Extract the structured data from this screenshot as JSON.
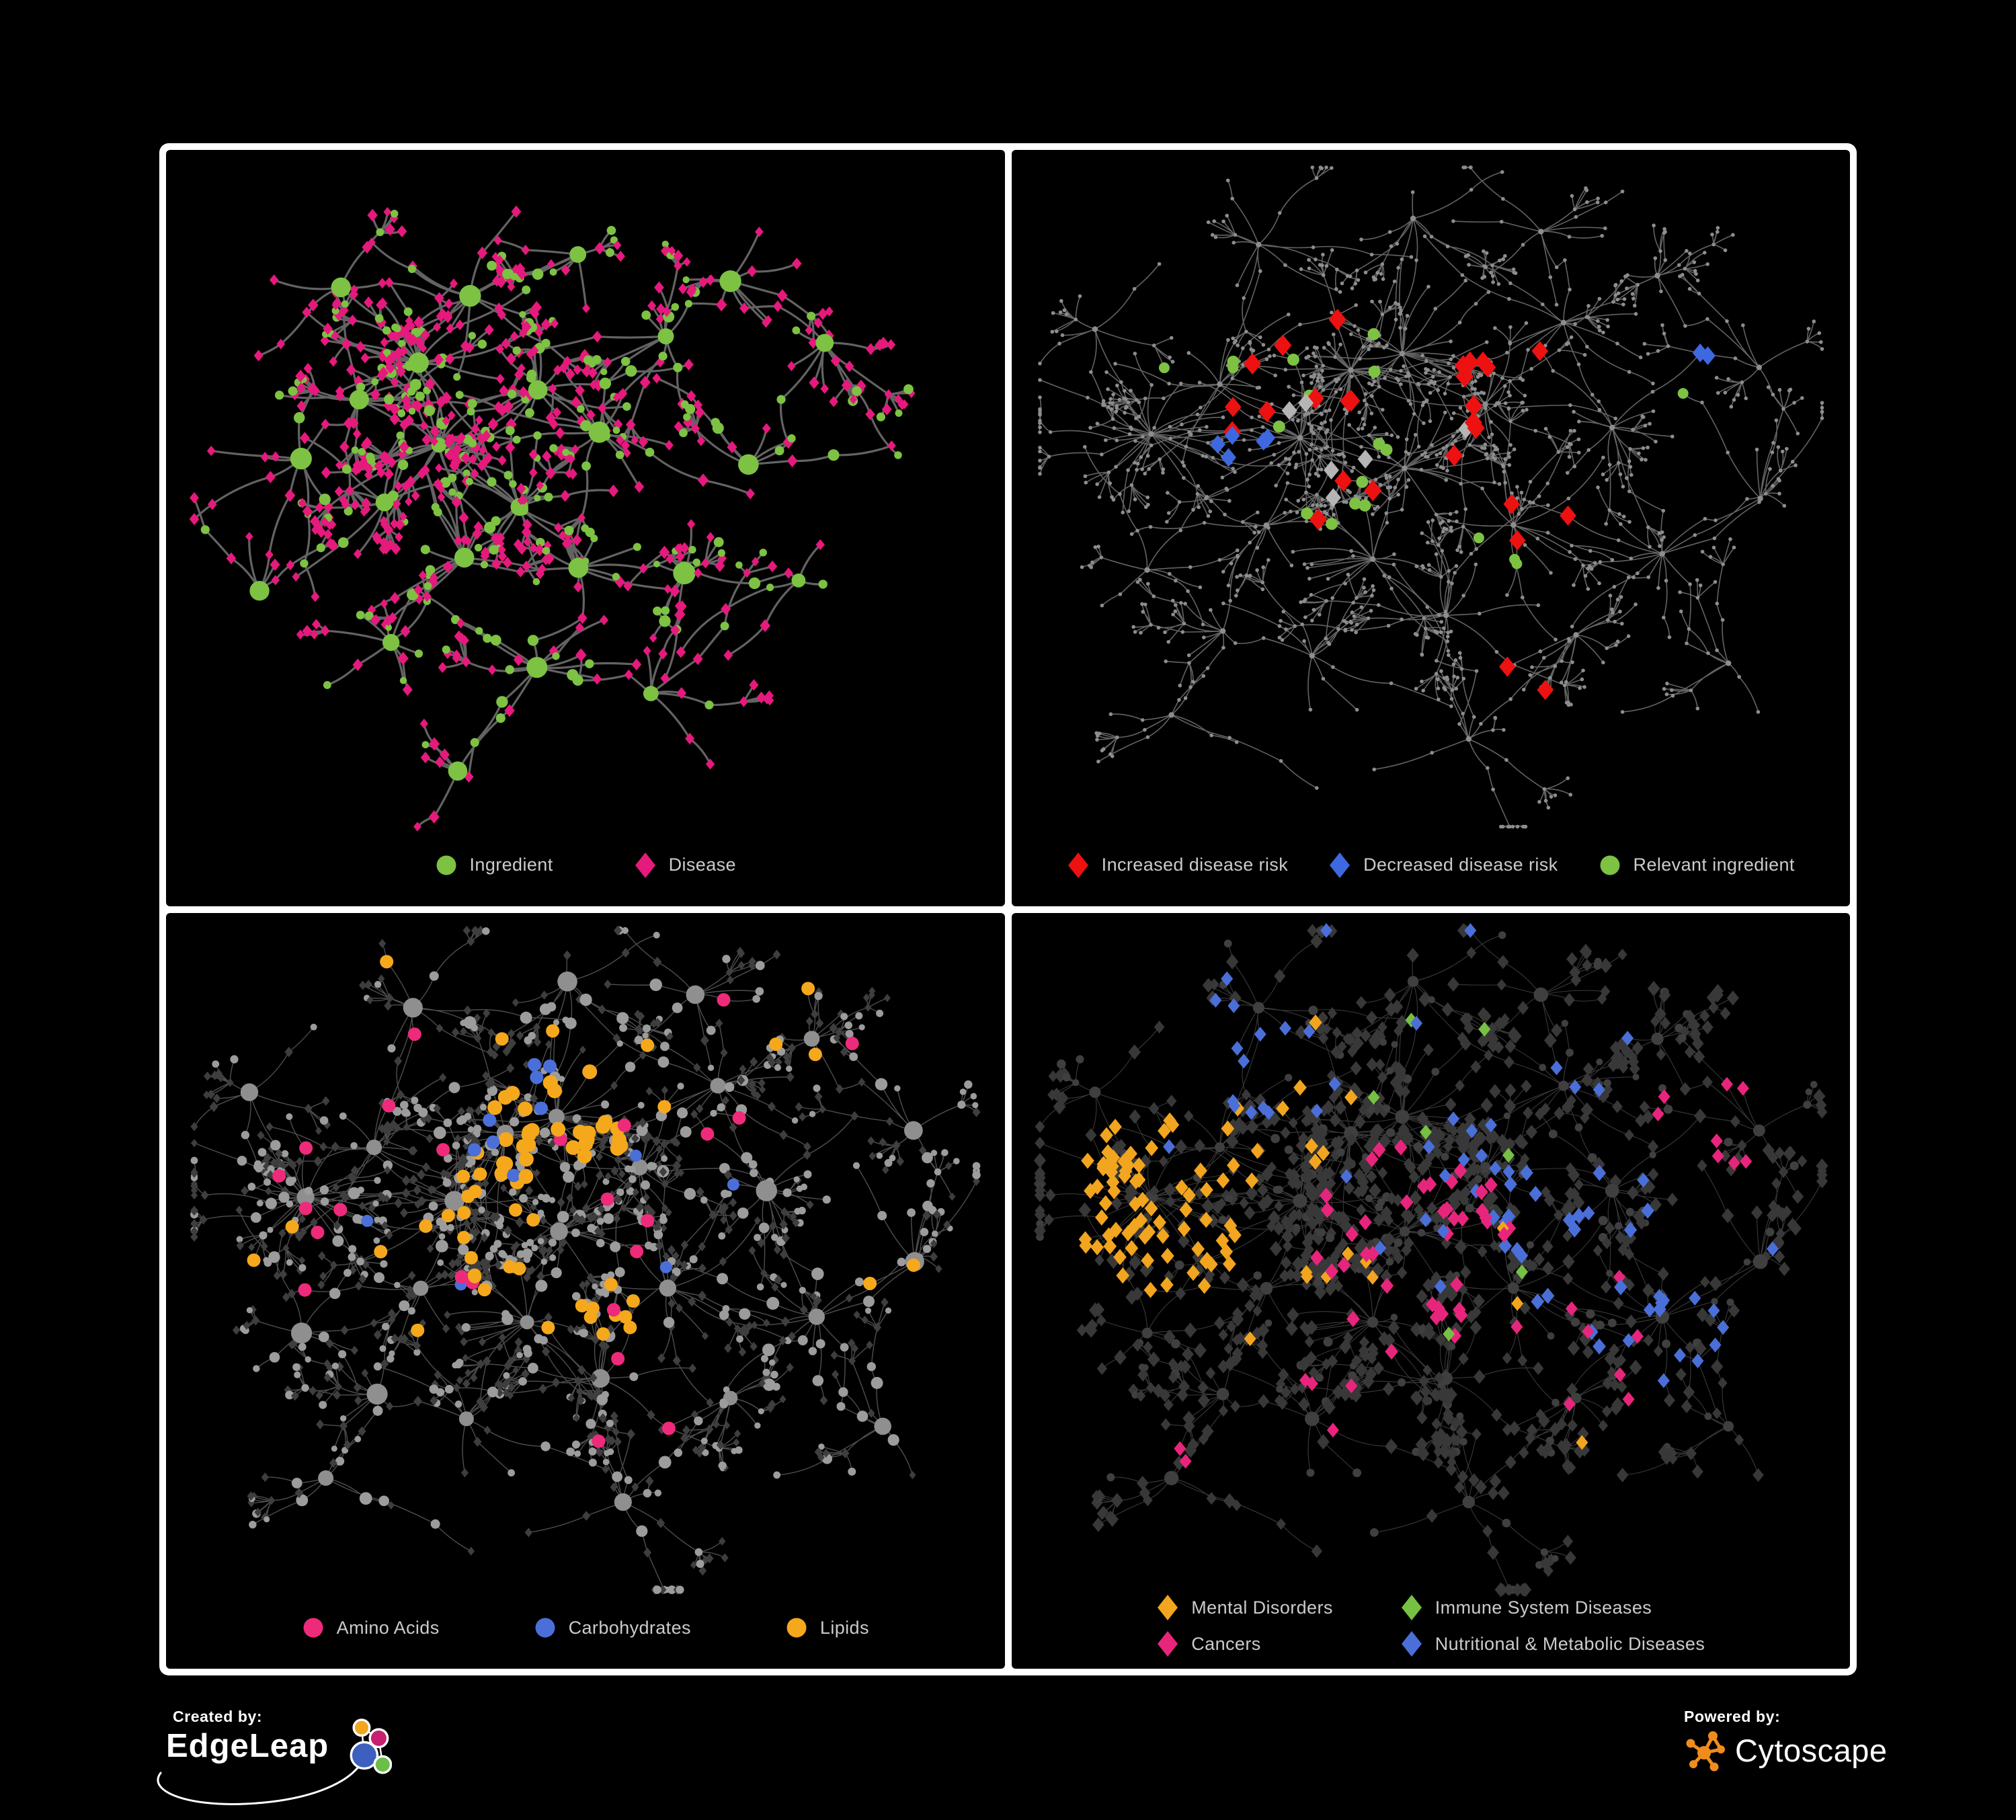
{
  "page": {
    "background": "#000000",
    "frame_color": "#ffffff"
  },
  "panels": [
    {
      "id": "ingredient-disease",
      "legend": [
        {
          "label": "Ingredient",
          "shape": "circle",
          "color": "#7DC242"
        },
        {
          "label": "Disease",
          "shape": "diamond",
          "color": "#E6197D"
        }
      ]
    },
    {
      "id": "disease-risk",
      "legend": [
        {
          "label": "Increased disease risk",
          "shape": "diamond",
          "color": "#EE1111"
        },
        {
          "label": "Decreased disease risk",
          "shape": "diamond",
          "color": "#3E68E0"
        },
        {
          "label": "Relevant ingredient",
          "shape": "circle",
          "color": "#7DC242"
        }
      ]
    },
    {
      "id": "nutrient-classes",
      "legend": [
        {
          "label": "Amino Acids",
          "shape": "circle",
          "color": "#EE2A7B"
        },
        {
          "label": "Carbohydrates",
          "shape": "circle",
          "color": "#4A6FD8"
        },
        {
          "label": "Lipids",
          "shape": "circle",
          "color": "#F5A81C"
        }
      ]
    },
    {
      "id": "disease-classes",
      "legend": [
        {
          "label": "Mental Disorders",
          "shape": "diamond",
          "color": "#F2A51F"
        },
        {
          "label": "Immune System Diseases",
          "shape": "diamond",
          "color": "#76C043"
        },
        {
          "label": "Cancers",
          "shape": "diamond",
          "color": "#E8257C"
        },
        {
          "label": "Nutritional & Metabolic Diseases",
          "shape": "diamond",
          "color": "#4A6FD8"
        }
      ]
    }
  ],
  "footer": {
    "created_by": "Created by:",
    "created_logo": "EdgeLeap",
    "powered_by": "Powered by:",
    "powered_logo": "Cytoscape",
    "edgeleap_colors": {
      "orange": "#F2A51F",
      "pink": "#C81F6E",
      "blue": "#3D5FC0",
      "green": "#6DBE45"
    },
    "cytoscape_color": "#F08C1E"
  },
  "chart_data": [
    {
      "type": "network",
      "panel": "ingredient-disease",
      "seed": 345,
      "styleSeed": 71,
      "curveSeed": 2024,
      "burstScale": 0.8,
      "chainP": 0.45,
      "fanP": 0.33,
      "base": "p1",
      "edge": {
        "color": "#696969",
        "width": 3.2,
        "opacity": 0.95
      },
      "node_colors": {
        "ingredient": "#7DC242",
        "disease": "#E6197D"
      },
      "clusters": [
        {
          "x": 0.3,
          "y": 0.3,
          "b": 26
        },
        {
          "x": 0.22,
          "y": 0.36,
          "b": 16
        },
        {
          "x": 0.36,
          "y": 0.22,
          "b": 14
        },
        {
          "x": 0.33,
          "y": 0.42,
          "b": 22
        },
        {
          "x": 0.44,
          "y": 0.34,
          "b": 18
        },
        {
          "x": 0.25,
          "y": 0.52,
          "b": 14
        },
        {
          "x": 0.42,
          "y": 0.5,
          "b": 16
        },
        {
          "x": 0.52,
          "y": 0.42,
          "b": 12
        },
        {
          "x": 0.36,
          "y": 0.6,
          "b": 12
        },
        {
          "x": 0.5,
          "y": 0.6,
          "b": 10
        },
        {
          "x": 0.28,
          "y": 0.7,
          "b": 10
        },
        {
          "x": 0.45,
          "y": 0.75,
          "b": 12
        },
        {
          "x": 0.6,
          "y": 0.28,
          "b": 10
        },
        {
          "x": 0.68,
          "y": 0.2,
          "b": 10
        },
        {
          "x": 0.78,
          "y": 0.28,
          "b": 10
        },
        {
          "x": 0.7,
          "y": 0.45,
          "b": 8
        },
        {
          "x": 0.62,
          "y": 0.6,
          "b": 8
        },
        {
          "x": 0.15,
          "y": 0.45,
          "b": 8
        },
        {
          "x": 0.2,
          "y": 0.2,
          "b": 8
        },
        {
          "x": 0.48,
          "y": 0.14,
          "b": 8
        },
        {
          "x": 0.35,
          "y": 0.88,
          "b": 6
        },
        {
          "x": 0.58,
          "y": 0.78,
          "b": 8
        },
        {
          "x": 0.12,
          "y": 0.62,
          "b": 5
        },
        {
          "x": 0.75,
          "y": 0.62,
          "b": 5
        }
      ],
      "specials": []
    },
    {
      "type": "network",
      "panel": "disease-risk",
      "seed": 777,
      "styleSeed": 12,
      "curveSeed": 2024,
      "burstScale": 1.0,
      "chainP": 0.45,
      "fanP": 0.38,
      "base": "gray",
      "edge": {
        "color": "#6E6E6E",
        "width": 1.6,
        "opacity": 0.9
      },
      "clusters": [
        {
          "x": 0.4,
          "y": 0.33,
          "b": 30
        },
        {
          "x": 0.46,
          "y": 0.28,
          "b": 22
        },
        {
          "x": 0.34,
          "y": 0.4,
          "b": 18
        },
        {
          "x": 0.17,
          "y": 0.42,
          "b": 26
        },
        {
          "x": 0.24,
          "y": 0.35,
          "b": 12
        },
        {
          "x": 0.48,
          "y": 0.45,
          "b": 20
        },
        {
          "x": 0.56,
          "y": 0.38,
          "b": 14
        },
        {
          "x": 0.44,
          "y": 0.58,
          "b": 16
        },
        {
          "x": 0.3,
          "y": 0.55,
          "b": 10
        },
        {
          "x": 0.6,
          "y": 0.55,
          "b": 14
        },
        {
          "x": 0.52,
          "y": 0.68,
          "b": 12
        },
        {
          "x": 0.36,
          "y": 0.72,
          "b": 10
        },
        {
          "x": 0.65,
          "y": 0.25,
          "b": 10
        },
        {
          "x": 0.72,
          "y": 0.4,
          "b": 12
        },
        {
          "x": 0.78,
          "y": 0.58,
          "b": 10
        },
        {
          "x": 0.68,
          "y": 0.7,
          "b": 10
        },
        {
          "x": 0.25,
          "y": 0.68,
          "b": 8
        },
        {
          "x": 0.15,
          "y": 0.6,
          "b": 6
        },
        {
          "x": 0.3,
          "y": 0.15,
          "b": 10
        },
        {
          "x": 0.48,
          "y": 0.1,
          "b": 8
        },
        {
          "x": 0.62,
          "y": 0.12,
          "b": 8
        },
        {
          "x": 0.78,
          "y": 0.18,
          "b": 8
        },
        {
          "x": 0.88,
          "y": 0.3,
          "b": 6
        },
        {
          "x": 0.85,
          "y": 0.75,
          "b": 6
        },
        {
          "x": 0.55,
          "y": 0.85,
          "b": 8
        },
        {
          "x": 0.2,
          "y": 0.82,
          "b": 6
        },
        {
          "x": 0.1,
          "y": 0.25,
          "b": 6
        },
        {
          "x": 0.9,
          "y": 0.5,
          "b": 5
        }
      ],
      "specials": [
        {
          "shape": "d",
          "color": "#EE1111",
          "size": 16,
          "count": 18,
          "cx": 0.42,
          "cy": 0.38,
          "rr": 0.16
        },
        {
          "shape": "d",
          "color": "#EE1111",
          "size": 15,
          "count": 3,
          "cx": 0.6,
          "cy": 0.33,
          "rr": 0.05
        },
        {
          "shape": "d",
          "color": "#EE1111",
          "size": 15,
          "count": 3,
          "cx": 0.64,
          "cy": 0.52,
          "rr": 0.06
        },
        {
          "shape": "d",
          "color": "#EE1111",
          "size": 15,
          "count": 2,
          "cx": 0.6,
          "cy": 0.77,
          "rr": 0.04
        },
        {
          "shape": "d",
          "color": "#EE1111",
          "size": 15,
          "count": 1,
          "cx": 0.24,
          "cy": 0.37,
          "rr": 0.03
        },
        {
          "shape": "d",
          "color": "#B5B5B5",
          "size": 14,
          "count": 4,
          "cx": 0.47,
          "cy": 0.47,
          "rr": 0.1
        },
        {
          "shape": "d",
          "color": "#B5B5B5",
          "size": 14,
          "count": 2,
          "cx": 0.32,
          "cy": 0.33,
          "rr": 0.05
        },
        {
          "shape": "d",
          "color": "#3E68E0",
          "size": 14,
          "count": 5,
          "cx": 0.25,
          "cy": 0.42,
          "rr": 0.06
        },
        {
          "shape": "d",
          "color": "#3E68E0",
          "size": 14,
          "count": 2,
          "cx": 0.83,
          "cy": 0.3,
          "rr": 0.02
        },
        {
          "shape": "c",
          "color": "#7DC242",
          "size": 9,
          "count": 13,
          "cx": 0.39,
          "cy": 0.36,
          "rr": 0.15
        },
        {
          "shape": "c",
          "color": "#7DC242",
          "size": 8,
          "count": 3,
          "cx": 0.58,
          "cy": 0.56,
          "rr": 0.04
        },
        {
          "shape": "c",
          "color": "#7DC242",
          "size": 8,
          "count": 2,
          "cx": 0.22,
          "cy": 0.3,
          "rr": 0.05
        },
        {
          "shape": "c",
          "color": "#7DC242",
          "size": 8,
          "count": 1,
          "cx": 0.8,
          "cy": 0.35,
          "rr": 0.02
        }
      ]
    },
    {
      "type": "network",
      "panel": "nutrient-classes",
      "seed": 777,
      "styleSeed": 55,
      "curveSeed": 2024,
      "burstScale": 1.0,
      "chainP": 0.45,
      "fanP": 0.38,
      "base": "p3",
      "edge": {
        "color": "#8F8F8F",
        "width": 1.4,
        "opacity": 0.55
      },
      "clusters": [
        {
          "x": 0.4,
          "y": 0.33,
          "b": 30
        },
        {
          "x": 0.46,
          "y": 0.28,
          "b": 22
        },
        {
          "x": 0.34,
          "y": 0.4,
          "b": 18
        },
        {
          "x": 0.17,
          "y": 0.42,
          "b": 26
        },
        {
          "x": 0.24,
          "y": 0.35,
          "b": 12
        },
        {
          "x": 0.48,
          "y": 0.45,
          "b": 20
        },
        {
          "x": 0.56,
          "y": 0.38,
          "b": 14
        },
        {
          "x": 0.44,
          "y": 0.58,
          "b": 16
        },
        {
          "x": 0.3,
          "y": 0.55,
          "b": 10
        },
        {
          "x": 0.6,
          "y": 0.55,
          "b": 14
        },
        {
          "x": 0.52,
          "y": 0.68,
          "b": 12
        },
        {
          "x": 0.36,
          "y": 0.72,
          "b": 10
        },
        {
          "x": 0.65,
          "y": 0.25,
          "b": 10
        },
        {
          "x": 0.72,
          "y": 0.4,
          "b": 12
        },
        {
          "x": 0.78,
          "y": 0.58,
          "b": 10
        },
        {
          "x": 0.68,
          "y": 0.7,
          "b": 10
        },
        {
          "x": 0.25,
          "y": 0.68,
          "b": 8
        },
        {
          "x": 0.15,
          "y": 0.6,
          "b": 6
        },
        {
          "x": 0.3,
          "y": 0.15,
          "b": 10
        },
        {
          "x": 0.48,
          "y": 0.1,
          "b": 8
        },
        {
          "x": 0.62,
          "y": 0.12,
          "b": 8
        },
        {
          "x": 0.78,
          "y": 0.18,
          "b": 8
        },
        {
          "x": 0.88,
          "y": 0.3,
          "b": 6
        },
        {
          "x": 0.85,
          "y": 0.75,
          "b": 6
        },
        {
          "x": 0.55,
          "y": 0.85,
          "b": 8
        },
        {
          "x": 0.2,
          "y": 0.82,
          "b": 6
        },
        {
          "x": 0.1,
          "y": 0.25,
          "b": 6
        },
        {
          "x": 0.9,
          "y": 0.5,
          "b": 5
        }
      ],
      "specials": [
        {
          "shape": "c",
          "color": "#F5A81C",
          "size": 11,
          "count": 34,
          "cx": 0.46,
          "cy": 0.3,
          "rr": 0.09
        },
        {
          "shape": "c",
          "color": "#F5A81C",
          "size": 10,
          "count": 16,
          "cx": 0.38,
          "cy": 0.44,
          "rr": 0.09
        },
        {
          "shape": "c",
          "color": "#F5A81C",
          "size": 10,
          "count": 10,
          "cx": 0.52,
          "cy": 0.6,
          "rr": 0.07
        },
        {
          "shape": "c",
          "color": "#F5A81C",
          "size": 10,
          "count": 16,
          "cx": 0.5,
          "cy": 0.45,
          "rr": 0.4
        },
        {
          "shape": "c",
          "color": "#EE2A7B",
          "size": 10,
          "count": 20,
          "cx": 0.5,
          "cy": 0.5,
          "rr": 0.42
        },
        {
          "shape": "c",
          "color": "#EE2A7B",
          "size": 10,
          "count": 4,
          "cx": 0.15,
          "cy": 0.4,
          "rr": 0.08
        },
        {
          "shape": "c",
          "color": "#4A6FD8",
          "size": 10,
          "count": 8,
          "cx": 0.44,
          "cy": 0.3,
          "rr": 0.08
        },
        {
          "shape": "c",
          "color": "#4A6FD8",
          "size": 9,
          "count": 5,
          "cx": 0.5,
          "cy": 0.55,
          "rr": 0.3
        }
      ]
    },
    {
      "type": "network",
      "panel": "disease-classes",
      "seed": 777,
      "styleSeed": 88,
      "curveSeed": 2024,
      "burstScale": 1.0,
      "chainP": 0.45,
      "fanP": 0.38,
      "base": "p4",
      "edge": {
        "color": "#909090",
        "width": 1.1,
        "opacity": 0.4
      },
      "clusters": [
        {
          "x": 0.4,
          "y": 0.33,
          "b": 30
        },
        {
          "x": 0.46,
          "y": 0.28,
          "b": 22
        },
        {
          "x": 0.34,
          "y": 0.4,
          "b": 18
        },
        {
          "x": 0.17,
          "y": 0.42,
          "b": 26
        },
        {
          "x": 0.24,
          "y": 0.35,
          "b": 12
        },
        {
          "x": 0.48,
          "y": 0.45,
          "b": 20
        },
        {
          "x": 0.56,
          "y": 0.38,
          "b": 14
        },
        {
          "x": 0.44,
          "y": 0.58,
          "b": 16
        },
        {
          "x": 0.3,
          "y": 0.55,
          "b": 10
        },
        {
          "x": 0.6,
          "y": 0.55,
          "b": 14
        },
        {
          "x": 0.52,
          "y": 0.68,
          "b": 12
        },
        {
          "x": 0.36,
          "y": 0.72,
          "b": 10
        },
        {
          "x": 0.65,
          "y": 0.25,
          "b": 10
        },
        {
          "x": 0.72,
          "y": 0.4,
          "b": 12
        },
        {
          "x": 0.78,
          "y": 0.58,
          "b": 10
        },
        {
          "x": 0.68,
          "y": 0.7,
          "b": 10
        },
        {
          "x": 0.25,
          "y": 0.68,
          "b": 8
        },
        {
          "x": 0.15,
          "y": 0.6,
          "b": 6
        },
        {
          "x": 0.3,
          "y": 0.15,
          "b": 10
        },
        {
          "x": 0.48,
          "y": 0.1,
          "b": 8
        },
        {
          "x": 0.62,
          "y": 0.12,
          "b": 8
        },
        {
          "x": 0.78,
          "y": 0.18,
          "b": 8
        },
        {
          "x": 0.88,
          "y": 0.3,
          "b": 6
        },
        {
          "x": 0.85,
          "y": 0.75,
          "b": 6
        },
        {
          "x": 0.55,
          "y": 0.85,
          "b": 8
        },
        {
          "x": 0.2,
          "y": 0.82,
          "b": 6
        },
        {
          "x": 0.1,
          "y": 0.25,
          "b": 6
        },
        {
          "x": 0.9,
          "y": 0.5,
          "b": 5
        }
      ],
      "specials": [
        {
          "shape": "d",
          "color": "#F2A51F",
          "size": 12,
          "count": 75,
          "cx": 0.17,
          "cy": 0.42,
          "rr": 0.12
        },
        {
          "shape": "d",
          "color": "#F2A51F",
          "size": 12,
          "count": 10,
          "cx": 0.3,
          "cy": 0.25,
          "rr": 0.12
        },
        {
          "shape": "d",
          "color": "#F2A51F",
          "size": 11,
          "count": 10,
          "cx": 0.5,
          "cy": 0.72,
          "rr": 0.25
        },
        {
          "shape": "d",
          "color": "#E8257C",
          "size": 12,
          "count": 40,
          "cx": 0.48,
          "cy": 0.5,
          "rr": 0.14
        },
        {
          "shape": "d",
          "color": "#E8257C",
          "size": 11,
          "count": 8,
          "cx": 0.7,
          "cy": 0.6,
          "rr": 0.1
        },
        {
          "shape": "d",
          "color": "#E8257C",
          "size": 11,
          "count": 8,
          "cx": 0.85,
          "cy": 0.3,
          "rr": 0.08
        },
        {
          "shape": "d",
          "color": "#E8257C",
          "size": 11,
          "count": 6,
          "cx": 0.3,
          "cy": 0.75,
          "rr": 0.15
        },
        {
          "shape": "d",
          "color": "#4A6FD8",
          "size": 12,
          "count": 22,
          "cx": 0.72,
          "cy": 0.45,
          "rr": 0.15
        },
        {
          "shape": "d",
          "color": "#4A6FD8",
          "size": 11,
          "count": 16,
          "cx": 0.5,
          "cy": 0.12,
          "rr": 0.25
        },
        {
          "shape": "d",
          "color": "#4A6FD8",
          "size": 11,
          "count": 14,
          "cx": 0.22,
          "cy": 0.18,
          "rr": 0.14
        },
        {
          "shape": "d",
          "color": "#4A6FD8",
          "size": 11,
          "count": 12,
          "cx": 0.85,
          "cy": 0.6,
          "rr": 0.12
        },
        {
          "shape": "d",
          "color": "#4A6FD8",
          "size": 11,
          "count": 10,
          "cx": 0.6,
          "cy": 0.35,
          "rr": 0.2
        },
        {
          "shape": "d",
          "color": "#76C043",
          "size": 11,
          "count": 7,
          "cx": 0.48,
          "cy": 0.38,
          "rr": 0.2
        }
      ]
    }
  ]
}
